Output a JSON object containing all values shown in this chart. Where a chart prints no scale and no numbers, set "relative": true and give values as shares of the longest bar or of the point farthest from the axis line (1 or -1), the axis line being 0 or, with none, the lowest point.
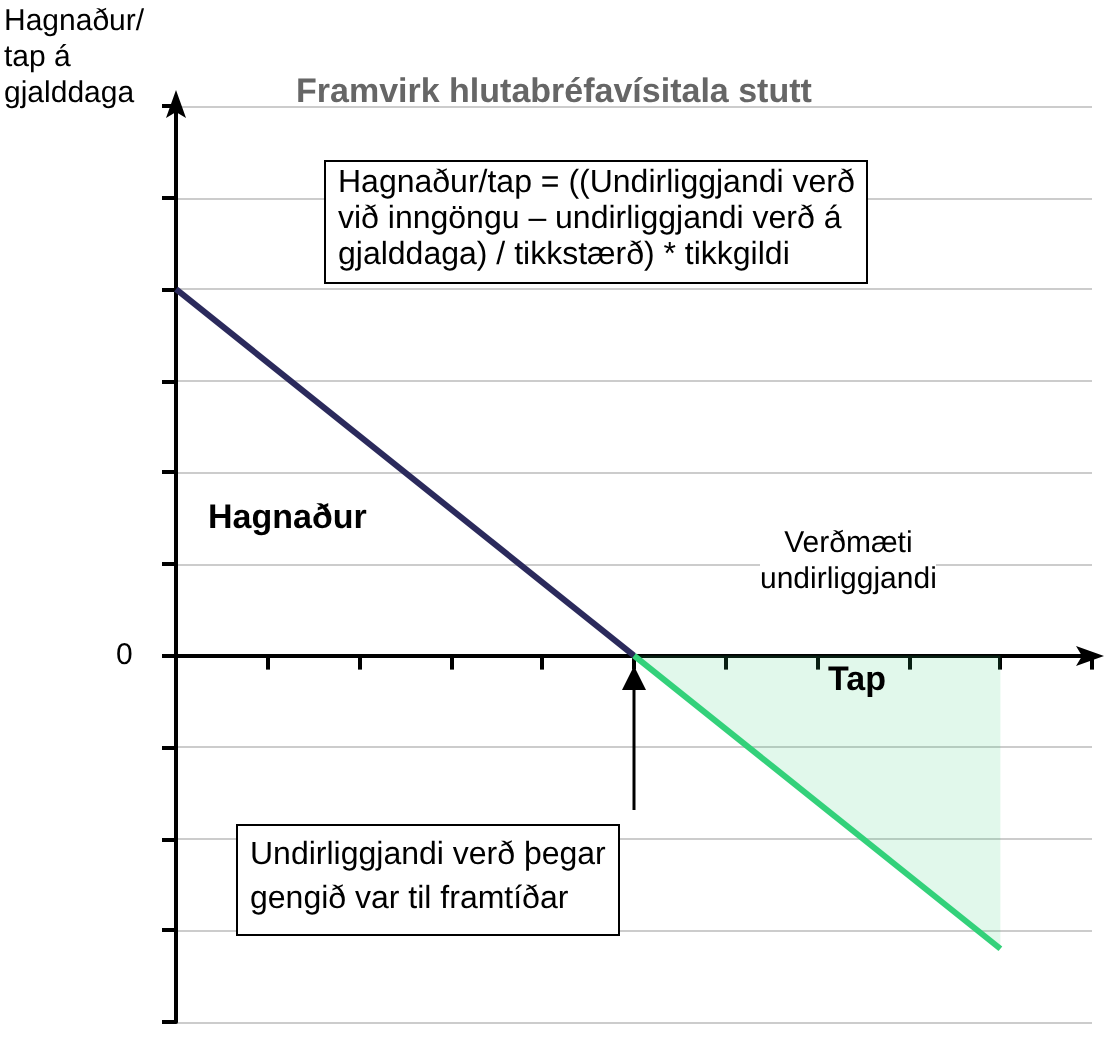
{
  "chart_data": {
    "type": "line",
    "title": "Framvirk hlutabréfavísitala stutt",
    "xlabel": "Verðmæti\nundirliggjandi",
    "relative": true,
    "grid": "y",
    "categories": [
      null,
      null,
      null,
      null,
      null,
      null,
      null,
      null,
      null,
      null,
      null
    ],
    "series": [
      {
        "type": "line",
        "color": "#2b2a5c",
        "values": [
          1,
          null,
          null,
          null,
          null,
          0,
          null,
          null,
          null,
          null,
          null
        ]
      },
      {
        "type": "area",
        "color": "#33d17a",
        "values": [
          null,
          null,
          null,
          null,
          null,
          0,
          null,
          null,
          null,
          -0.8,
          null
        ]
      }
    ],
    "annotations": [
      "Hagnaður/tap = ((Undirliggjandi verð\nvið inngöngu – undirliggjandi verð á\ngjalddaga) / tikkstærð) * tikkgildi",
      "Hagnaður",
      "Tap",
      "Undirliggjandi verð þegar\ngengið var til framtíðar",
      "0",
      "Hagnaður/\ntap á\ngjalddaga"
    ]
  }
}
